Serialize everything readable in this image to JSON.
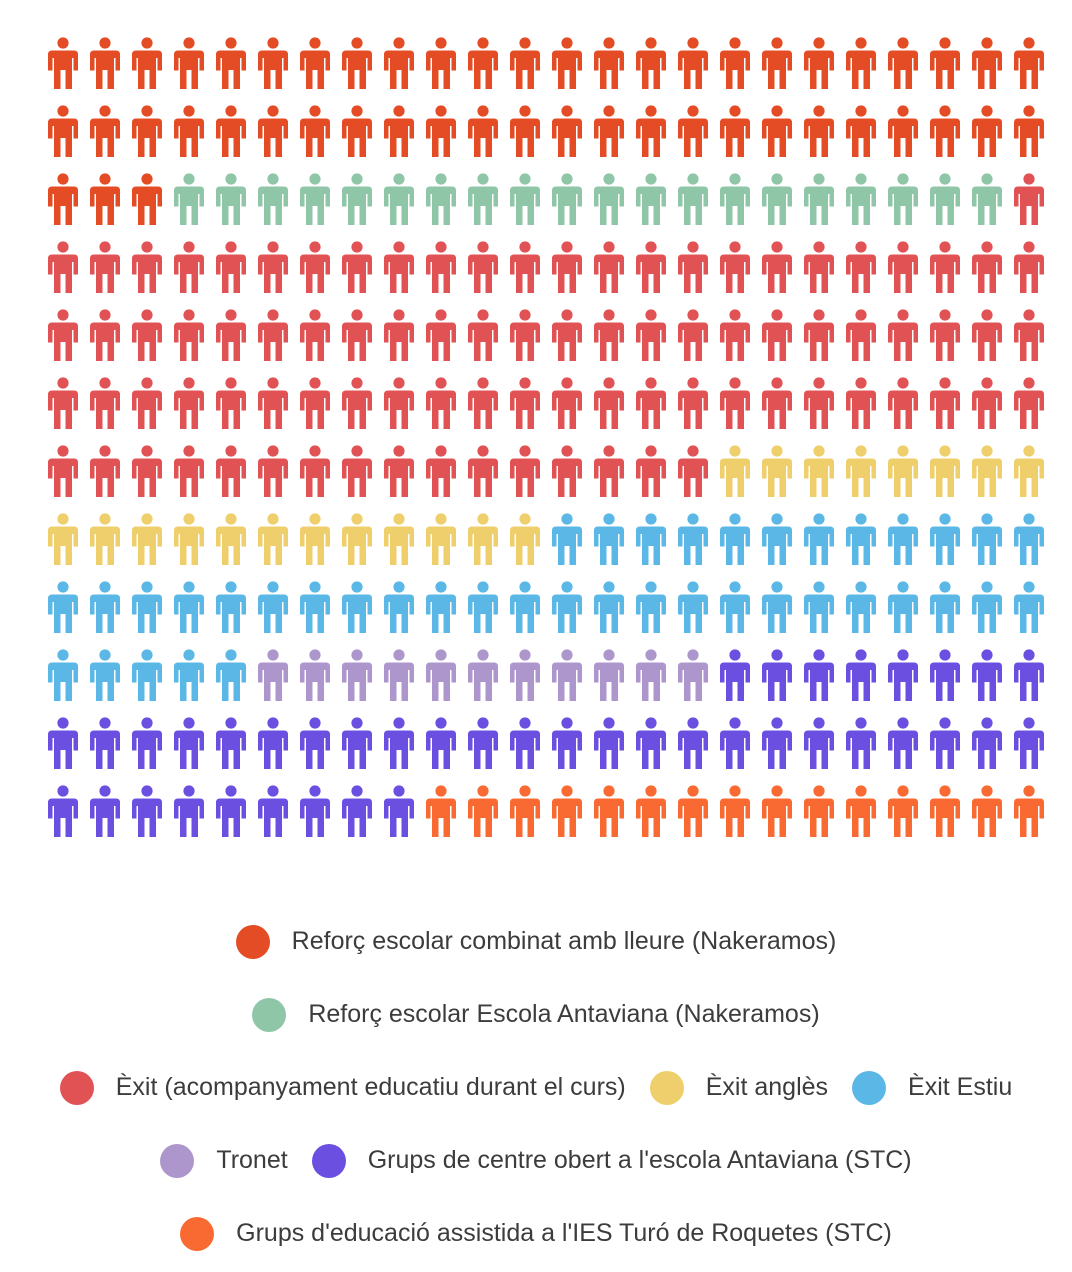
{
  "chart_data": {
    "type": "pictograph",
    "icon": "person-icon",
    "columns": 24,
    "rows": 12,
    "series": [
      {
        "name": "Reforç escolar combinat amb lleure (Nakeramos)",
        "value": 51,
        "color": "#e44c25"
      },
      {
        "name": "Reforç escolar Escola Antaviana (Nakeramos)",
        "value": 20,
        "color": "#8fc6a8"
      },
      {
        "name": "Èxit (acompanyament educatiu durant el curs)",
        "value": 89,
        "color": "#e05253"
      },
      {
        "name": "Èxit anglès",
        "value": 20,
        "color": "#eecf6b"
      },
      {
        "name": "Èxit Estiu",
        "value": 41,
        "color": "#5bb8e6"
      },
      {
        "name": "Tronet",
        "value": 11,
        "color": "#ac96cc"
      },
      {
        "name": "Grups de centre obert a l'escola Antaviana (STC)",
        "value": 41,
        "color": "#6b4fe0"
      },
      {
        "name": "Grups d'educació assistida a l'IES Turó de Roquetes (STC)",
        "value": 15,
        "color": "#f86a32"
      }
    ],
    "legend_position": "bottom"
  },
  "legend_rows": [
    [
      0
    ],
    [
      1
    ],
    [
      2,
      3,
      4
    ],
    [
      5,
      6
    ],
    [
      7
    ]
  ]
}
